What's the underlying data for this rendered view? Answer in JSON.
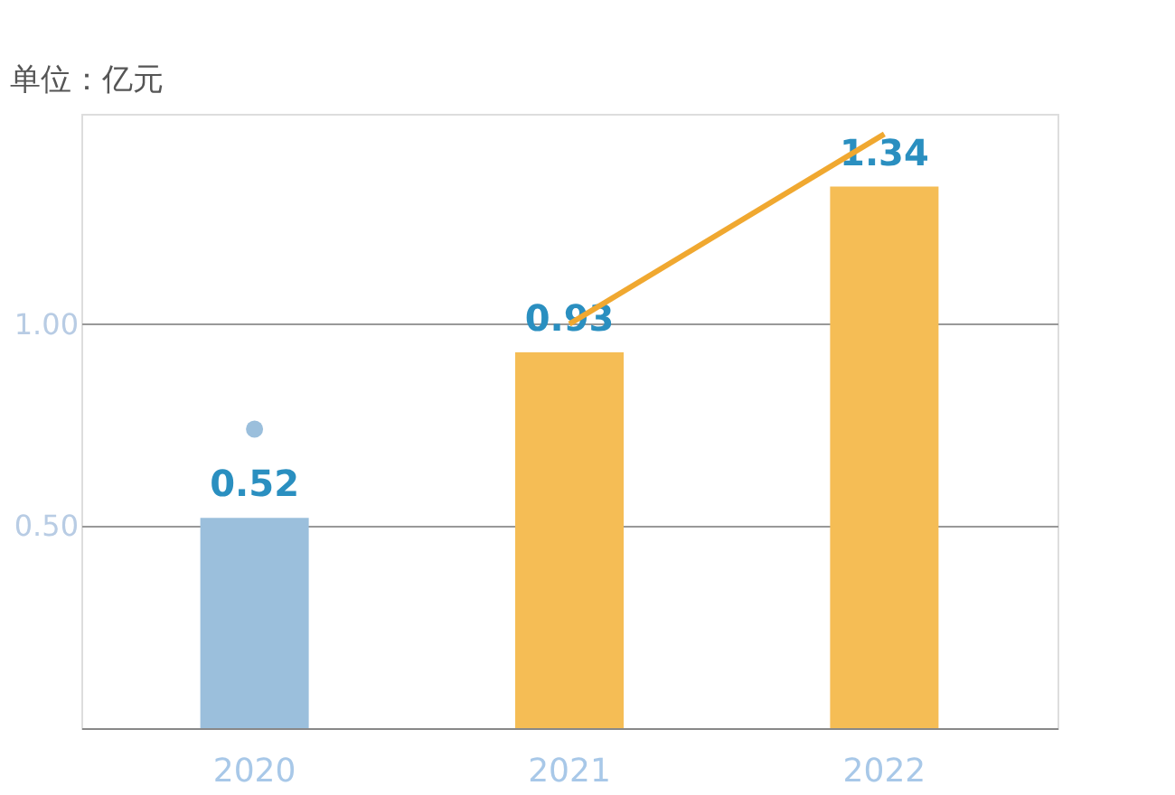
{
  "chart_data": {
    "type": "bar",
    "ylabel": "单位：亿元",
    "categories": [
      "2020",
      "2021",
      "2022"
    ],
    "values": [
      0.52,
      0.93,
      1.34
    ],
    "colors": [
      "#9bbfdc",
      "#f5bd55",
      "#f5bd55"
    ],
    "value_labels": [
      "0.52",
      "0.93",
      "1.34"
    ],
    "series": [
      {
        "type": "line",
        "color": "#9bbfdc",
        "values": [
          0.74,
          null,
          null
        ],
        "marker": "circle"
      },
      {
        "type": "line",
        "color": "#f0a830",
        "values": [
          null,
          1.0,
          1.47
        ],
        "marker": "none"
      }
    ],
    "ylim": [
      0,
      1.52
    ],
    "yticks": [
      {
        "value": 0.5,
        "label": "0.50"
      },
      {
        "value": 1,
        "label": "1.00"
      }
    ],
    "grid": "y"
  }
}
